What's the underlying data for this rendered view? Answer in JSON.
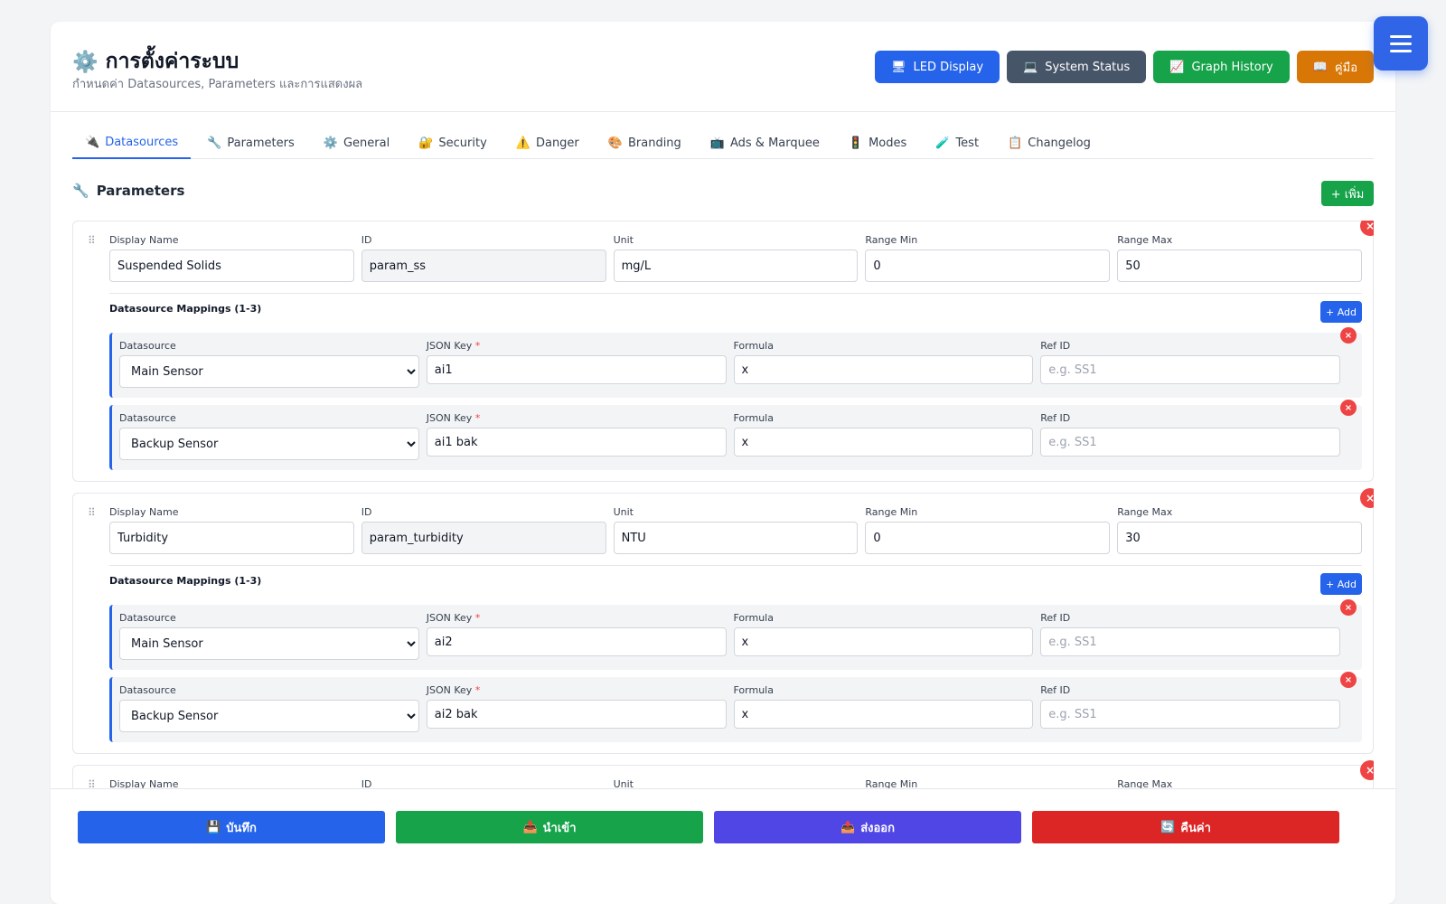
{
  "header": {
    "title": "การตั้งค่าระบบ",
    "subtitle": "กำหนดค่า Datasources, Parameters และการแสดงผล",
    "buttons": [
      {
        "label": "LED Display",
        "icon": "monitor-icon",
        "color": "#2563eb"
      },
      {
        "label": "System Status",
        "icon": "computer-icon",
        "color": "#475569"
      },
      {
        "label": "Graph History",
        "icon": "chart-icon",
        "color": "#16a34a"
      },
      {
        "label": "คู่มือ",
        "icon": "book-icon",
        "color": "#d97706"
      }
    ]
  },
  "tabs": [
    {
      "label": "Datasources",
      "icon": "plug-icon"
    },
    {
      "label": "Parameters",
      "icon": "wrench-icon"
    },
    {
      "label": "General",
      "icon": "gear-icon"
    },
    {
      "label": "Security",
      "icon": "lock-icon"
    },
    {
      "label": "Danger",
      "icon": "warning-icon"
    },
    {
      "label": "Branding",
      "icon": "palette-icon"
    },
    {
      "label": "Ads & Marquee",
      "icon": "tv-icon"
    },
    {
      "label": "Modes",
      "icon": "traffic-light-icon"
    },
    {
      "label": "Test",
      "icon": "test-tube-icon"
    },
    {
      "label": "Changelog",
      "icon": "clipboard-icon"
    }
  ],
  "section": {
    "title": "Parameters",
    "add_label": "+ เพิ่ม"
  },
  "labels": {
    "display_name": "Display Name",
    "id": "ID",
    "unit": "Unit",
    "range_min": "Range Min",
    "range_max": "Range Max",
    "mappings_title": "Datasource Mappings (1-3)",
    "add_mapping": "+ Add",
    "datasource": "Datasource",
    "json_key": "JSON Key",
    "required_mark": "*",
    "formula": "Formula",
    "ref_id": "Ref ID",
    "ref_placeholder": "e.g. SS1"
  },
  "params": [
    {
      "display_name": "Suspended Solids",
      "id": "param_ss",
      "unit": "mg/L",
      "range_min": "0",
      "range_max": "50",
      "mappings": [
        {
          "datasource": "Main Sensor",
          "json_key": "ai1",
          "formula": "x"
        },
        {
          "datasource": "Backup Sensor",
          "json_key": "ai1 bak",
          "formula": "x"
        }
      ]
    },
    {
      "display_name": "Turbidity",
      "id": "param_turbidity",
      "unit": "NTU",
      "range_min": "0",
      "range_max": "30",
      "mappings": [
        {
          "datasource": "Main Sensor",
          "json_key": "ai2",
          "formula": "x"
        },
        {
          "datasource": "Backup Sensor",
          "json_key": "ai2 bak",
          "formula": "x"
        }
      ]
    },
    {
      "display_name": "",
      "id": "",
      "unit": "",
      "range_min": "",
      "range_max": "",
      "mappings": []
    }
  ],
  "datasource_options": [
    "Main Sensor",
    "Backup Sensor"
  ],
  "footer": {
    "buttons": [
      {
        "label": "บันทึก",
        "icon": "floppy-icon",
        "color": "#2563eb"
      },
      {
        "label": "นำเข้า",
        "icon": "import-icon",
        "color": "#16a34a"
      },
      {
        "label": "ส่งออก",
        "icon": "export-icon",
        "color": "#4f46e5"
      },
      {
        "label": "คืนค่า",
        "icon": "reset-icon",
        "color": "#dc2626"
      }
    ]
  }
}
